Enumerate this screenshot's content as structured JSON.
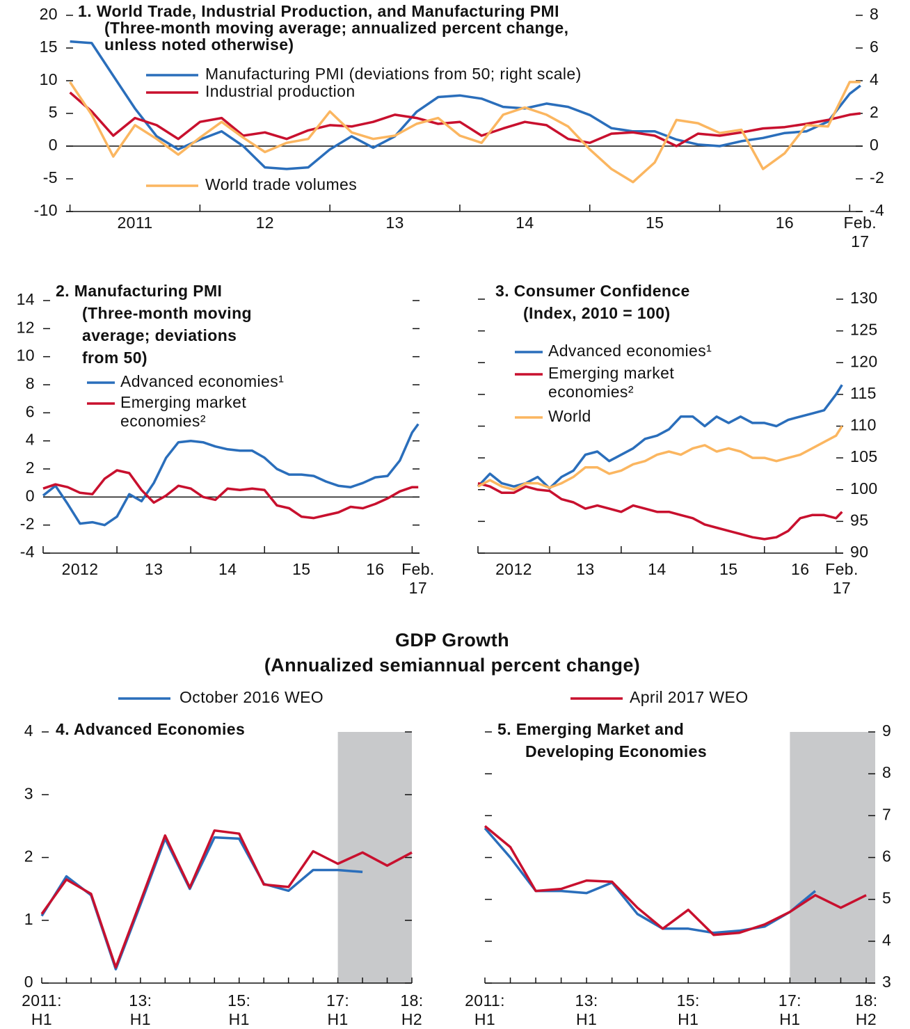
{
  "chart_data": [
    {
      "type": "line",
      "title": [
        "1. World Trade, Industrial Production, and Manufacturing PMI",
        "(Three-month moving average; annualized percent change,",
        "unless noted otherwise)"
      ],
      "x": [
        2011,
        2011.167,
        2011.333,
        2011.5,
        2011.667,
        2011.833,
        2012,
        2012.167,
        2012.333,
        2012.5,
        2012.667,
        2012.833,
        2013,
        2013.167,
        2013.333,
        2013.5,
        2013.667,
        2013.833,
        2014,
        2014.167,
        2014.333,
        2014.5,
        2014.667,
        2014.833,
        2015,
        2015.167,
        2015.333,
        2015.5,
        2015.667,
        2015.833,
        2016,
        2016.167,
        2016.333,
        2016.5,
        2016.667,
        2016.833,
        2017,
        2017.083
      ],
      "xlim": [
        2010.97,
        2017.1
      ],
      "xticks": [
        2011,
        2012,
        2013,
        2014,
        2015,
        2016,
        2017
      ],
      "xtick_labels": [
        {
          "value": 2011.5,
          "label": "2011"
        },
        {
          "value": 2012.5,
          "label": "12"
        },
        {
          "value": 2013.5,
          "label": "13"
        },
        {
          "value": 2014.5,
          "label": "14"
        },
        {
          "value": 2015.5,
          "label": "15"
        },
        {
          "value": 2016.5,
          "label": "16"
        },
        {
          "value": 2017.08,
          "label": "Feb.\n17"
        }
      ],
      "ylim": [
        -10,
        20
      ],
      "yticks": [
        -10,
        -5,
        0,
        5,
        10,
        15,
        20
      ],
      "y2lim": [
        -4,
        8
      ],
      "y2ticks": [
        -4,
        -2,
        0,
        2,
        4,
        6,
        8
      ],
      "zero_line": true,
      "series": [
        {
          "name": "Manufacturing PMI (deviations from 50; right scale)",
          "color": "#2a6ebb",
          "axis": "y2",
          "values": [
            6.4,
            6.3,
            4.3,
            2.3,
            0.6,
            -0.2,
            0.4,
            0.9,
            0,
            -1.3,
            -1.4,
            -1.3,
            -0.2,
            0.6,
            -0.1,
            0.6,
            2.1,
            3.0,
            3.1,
            2.9,
            2.4,
            2.3,
            2.6,
            2.4,
            1.9,
            1.1,
            0.9,
            0.9,
            0.4,
            0.1,
            0,
            0.3,
            0.5,
            0.8,
            0.9,
            1.5,
            3.2,
            3.7
          ]
        },
        {
          "name": "Industrial production",
          "color": "#c8102e",
          "values": [
            8.2,
            5.3,
            1.6,
            4.3,
            3.2,
            1.1,
            3.7,
            4.3,
            1.6,
            2.1,
            1.1,
            2.4,
            3.2,
            3.0,
            3.7,
            4.8,
            4.3,
            3.4,
            3.7,
            1.6,
            2.7,
            3.7,
            3.2,
            1.1,
            0.5,
            1.9,
            2.1,
            1.6,
            0,
            1.9,
            1.6,
            2.1,
            2.7,
            2.9,
            3.4,
            4.0,
            4.8,
            5.0
          ]
        },
        {
          "name": "World trade volumes",
          "color": "#fbb660",
          "values": [
            9.8,
            4.8,
            -1.6,
            3.2,
            1.1,
            -1.3,
            1.3,
            3.7,
            1.3,
            -0.9,
            0.5,
            1.1,
            5.3,
            2.1,
            1.1,
            1.6,
            3.4,
            4.3,
            1.6,
            0.5,
            4.8,
            5.9,
            4.8,
            3.0,
            -0.5,
            -3.5,
            -5.5,
            -2.5,
            4.0,
            3.5,
            2.0,
            2.5,
            -3.5,
            -1.1,
            3.2,
            3.0,
            9.8,
            9.8
          ]
        }
      ]
    },
    {
      "type": "line",
      "title": [
        "2. Manufacturing PMI",
        "(Three-month moving",
        "average; deviations",
        "from 50)"
      ],
      "x": [
        2012,
        2012.167,
        2012.333,
        2012.5,
        2012.667,
        2012.833,
        2013,
        2013.167,
        2013.333,
        2013.5,
        2013.667,
        2013.833,
        2014,
        2014.167,
        2014.333,
        2014.5,
        2014.667,
        2014.833,
        2015,
        2015.167,
        2015.333,
        2015.5,
        2015.667,
        2015.833,
        2016,
        2016.167,
        2016.333,
        2016.5,
        2016.667,
        2016.833,
        2017,
        2017.083
      ],
      "xlim": [
        2012,
        2017.1
      ],
      "xticks": [
        2012,
        2013,
        2014,
        2015,
        2016,
        2017
      ],
      "xtick_labels": [
        {
          "value": 2012.5,
          "label": "2012"
        },
        {
          "value": 2013.5,
          "label": "13"
        },
        {
          "value": 2014.5,
          "label": "14"
        },
        {
          "value": 2015.5,
          "label": "15"
        },
        {
          "value": 2016.5,
          "label": "16"
        },
        {
          "value": 2017.08,
          "label": "Feb.\n17"
        }
      ],
      "ylim": [
        -4,
        14
      ],
      "yticks": [
        -4,
        -2,
        0,
        2,
        4,
        6,
        8,
        10,
        12,
        14
      ],
      "zero_line": true,
      "series": [
        {
          "name": "Advanced economies¹",
          "color": "#2a6ebb",
          "values": [
            0.1,
            0.8,
            -0.5,
            -1.9,
            -1.8,
            -2.0,
            -1.4,
            0.2,
            -0.3,
            1.0,
            2.8,
            3.9,
            4.0,
            3.9,
            3.6,
            3.4,
            3.3,
            3.3,
            2.8,
            2.0,
            1.6,
            1.6,
            1.5,
            1.1,
            0.8,
            0.7,
            1.0,
            1.4,
            1.5,
            2.6,
            4.6,
            5.2
          ]
        },
        {
          "name": "Emerging market\neconomies²",
          "color": "#c8102e",
          "values": [
            0.6,
            0.9,
            0.7,
            0.3,
            0.2,
            1.3,
            1.9,
            1.7,
            0.5,
            -0.4,
            0.1,
            0.8,
            0.6,
            0.0,
            -0.2,
            0.6,
            0.5,
            0.6,
            0.5,
            -0.6,
            -0.8,
            -1.4,
            -1.5,
            -1.3,
            -1.1,
            -0.7,
            -0.8,
            -0.5,
            -0.1,
            0.4,
            0.7,
            0.7
          ]
        }
      ]
    },
    {
      "type": "line",
      "title": [
        "3. Consumer Confidence",
        "(Index, 2010 = 100)"
      ],
      "x": [
        2012,
        2012.167,
        2012.333,
        2012.5,
        2012.667,
        2012.833,
        2013,
        2013.167,
        2013.333,
        2013.5,
        2013.667,
        2013.833,
        2014,
        2014.167,
        2014.333,
        2014.5,
        2014.667,
        2014.833,
        2015,
        2015.167,
        2015.333,
        2015.5,
        2015.667,
        2015.833,
        2016,
        2016.167,
        2016.333,
        2016.5,
        2016.667,
        2016.833,
        2017,
        2017.083
      ],
      "xlim": [
        2012,
        2017.1
      ],
      "xticks": [
        2012,
        2013,
        2014,
        2015,
        2016,
        2017
      ],
      "xtick_labels": [
        {
          "value": 2012.5,
          "label": "2012"
        },
        {
          "value": 2013.5,
          "label": "13"
        },
        {
          "value": 2014.5,
          "label": "14"
        },
        {
          "value": 2015.5,
          "label": "15"
        },
        {
          "value": 2016.5,
          "label": "16"
        },
        {
          "value": 2017.08,
          "label": "Feb.\n17"
        }
      ],
      "ylim": [
        90,
        130
      ],
      "yticks": [
        90,
        95,
        100,
        105,
        110,
        115,
        120,
        125,
        130
      ],
      "yaxis_side": "right",
      "series": [
        {
          "name": "Advanced economies¹",
          "color": "#2a6ebb",
          "values": [
            100.5,
            102.5,
            101,
            100.5,
            101,
            102,
            100.2,
            102,
            103,
            105.5,
            106,
            104.5,
            105.5,
            106.5,
            108,
            108.5,
            109.5,
            111.5,
            111.5,
            110,
            111.5,
            110.5,
            111.5,
            110.5,
            110.5,
            110,
            111,
            111.5,
            112,
            112.5,
            115,
            116.5
          ]
        },
        {
          "name": "Emerging market\neconomies²",
          "color": "#c8102e",
          "values": [
            101,
            100.5,
            99.5,
            99.5,
            100.5,
            100,
            99.8,
            98.5,
            98,
            97,
            97.5,
            97,
            96.5,
            97.5,
            97,
            96.5,
            96.5,
            96,
            95.5,
            94.5,
            94,
            93.5,
            93,
            92.5,
            92.2,
            92.5,
            93.5,
            95.5,
            96,
            96,
            95.5,
            96.5
          ]
        },
        {
          "name": "World",
          "color": "#fbb660",
          "values": [
            100.5,
            101.5,
            100.5,
            100,
            101,
            101,
            100.3,
            101,
            102,
            103.5,
            103.5,
            102.5,
            103,
            104,
            104.5,
            105.5,
            106,
            105.5,
            106.5,
            107,
            106,
            106.5,
            106,
            105,
            105,
            104.5,
            105,
            105.5,
            106.5,
            107.5,
            108.5,
            110
          ]
        }
      ]
    },
    {
      "type": "line",
      "title": [
        "4. Advanced Economies"
      ],
      "categories": [
        "2011:\nH1",
        null,
        null,
        null,
        "13:\nH1",
        null,
        null,
        null,
        "15:\nH1",
        null,
        null,
        null,
        "17:\nH1",
        null,
        null,
        "18:\nH2"
      ],
      "ylim": [
        0,
        4
      ],
      "yticks": [
        0,
        1,
        2,
        3,
        4
      ],
      "forecast_start_index": 12,
      "series": [
        {
          "color": "#2a6ebb",
          "values": [
            1.07,
            1.7,
            1.4,
            0.22,
            1.25,
            2.3,
            1.5,
            2.32,
            2.3,
            1.58,
            1.47,
            1.8,
            1.8,
            1.77,
            null,
            null
          ]
        },
        {
          "color": "#c8102e",
          "values": [
            1.1,
            1.65,
            1.42,
            0.25,
            1.3,
            2.35,
            1.52,
            2.43,
            2.38,
            1.57,
            1.53,
            2.1,
            1.9,
            2.08,
            1.87,
            2.08
          ]
        }
      ]
    },
    {
      "type": "line",
      "title": [
        "5. Emerging Market and",
        "Developing Economies"
      ],
      "categories": [
        "2011:\nH1",
        null,
        null,
        null,
        "13:\nH1",
        null,
        null,
        null,
        "15:\nH1",
        null,
        null,
        null,
        "17:\nH1",
        null,
        null,
        "18:\nH2"
      ],
      "ylim": [
        3,
        9
      ],
      "yticks": [
        3,
        4,
        5,
        6,
        7,
        8,
        9
      ],
      "yaxis_side": "right",
      "forecast_start_index": 12,
      "series": [
        {
          "color": "#2a6ebb",
          "values": [
            6.7,
            6.0,
            5.2,
            5.2,
            5.15,
            5.4,
            4.65,
            4.3,
            4.3,
            4.2,
            4.25,
            4.35,
            4.7,
            5.2,
            null,
            null
          ]
        },
        {
          "color": "#c8102e",
          "values": [
            6.75,
            6.25,
            5.2,
            5.25,
            5.45,
            5.42,
            4.8,
            4.3,
            4.75,
            4.15,
            4.2,
            4.4,
            4.7,
            5.1,
            4.8,
            5.1
          ]
        }
      ]
    }
  ],
  "gdp_panel": {
    "title": "GDP Growth",
    "subtitle": "(Annualized semiannual percent change)",
    "legend": [
      {
        "name": "October 2016 WEO",
        "color": "#2a6ebb"
      },
      {
        "name": "April 2017 WEO",
        "color": "#c8102e"
      }
    ]
  }
}
